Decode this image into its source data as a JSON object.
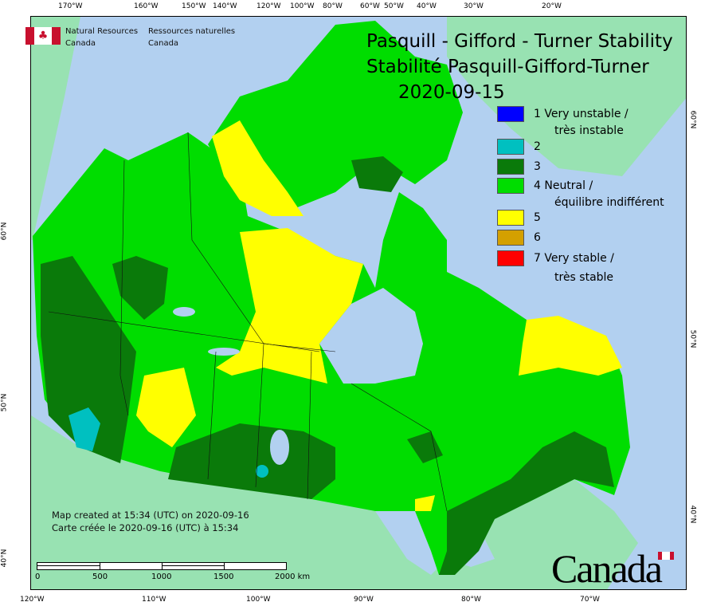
{
  "title": {
    "line1": "Pasquill - Gifford - Turner Stability",
    "line2": "Stabilité Pasquill-Gifford-Turner",
    "date": "2020-09-15"
  },
  "agency": {
    "en1": "Natural Resources",
    "en2": "Canada",
    "fr1": "Ressources naturelles",
    "fr2": "Canada",
    "flag_color": "#c8102e"
  },
  "legend": [
    {
      "label": "1 Very unstable /",
      "label2": "très instable",
      "color": "#0000ff"
    },
    {
      "label": "2",
      "color": "#00c0c0"
    },
    {
      "label": "3",
      "color": "#0a7a0a"
    },
    {
      "label": "4 Neutral /",
      "label2": "équilibre indifférent",
      "color": "#00dd00"
    },
    {
      "label": "5",
      "color": "#ffff00"
    },
    {
      "label": "6",
      "color": "#d4a000"
    },
    {
      "label": "7 Very stable /",
      "label2": "très stable",
      "color": "#ff0000"
    }
  ],
  "created": {
    "en": "Map created at 15:34 (UTC) on 2020-09-16",
    "fr": "Carte créée le 2020-09-16 (UTC) à 15:34"
  },
  "scale": {
    "labels": [
      "0",
      "500",
      "1000",
      "1500",
      "2000 km"
    ]
  },
  "axes": {
    "top": [
      "170°W",
      "160°W",
      "150°W",
      "140°W",
      "120°W",
      "100°W",
      "80°W",
      "60°W",
      "50°W",
      "40°W",
      "30°W",
      "20°W"
    ],
    "bottom": [
      "120°W",
      "110°W",
      "100°W",
      "90°W",
      "80°W",
      "70°W"
    ],
    "left": [
      "60°N",
      "50°N",
      "40°N"
    ],
    "right": [
      "60°N",
      "50°N",
      "40°N"
    ]
  },
  "wordmark": "Canada",
  "colors": {
    "ocean": "#b2d0f0",
    "foreign_land": "#98e2b2"
  }
}
